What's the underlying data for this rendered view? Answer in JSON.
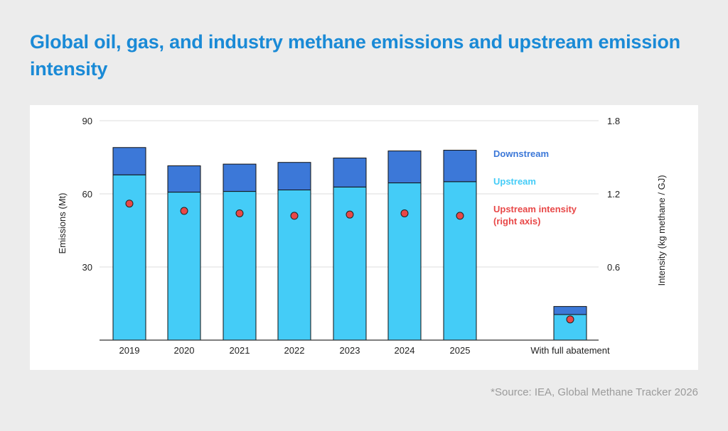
{
  "title": "Global oil, gas, and industry methane emissions and upstream emission intensity",
  "source": "*Source: IEA, Global Methane Tracker 2026",
  "chart_data": {
    "type": "bar",
    "stacked": true,
    "categories": [
      "2019",
      "2020",
      "2021",
      "2022",
      "2023",
      "2024",
      "2025",
      "With full abatement"
    ],
    "series": [
      {
        "name": "Upstream",
        "kind": "bar",
        "axis": "left",
        "color": "#44ccf7",
        "values": [
          67.8,
          60.7,
          61.0,
          61.6,
          62.8,
          64.5,
          65.0,
          10.5
        ]
      },
      {
        "name": "Downstream",
        "kind": "bar",
        "axis": "left",
        "color": "#3c78d8",
        "values": [
          11.2,
          10.8,
          11.2,
          11.3,
          11.9,
          13.1,
          12.9,
          3.3
        ]
      },
      {
        "name": "Upstream intensity",
        "kind": "scatter",
        "axis": "right",
        "color": "#e84848",
        "values": [
          1.12,
          1.06,
          1.04,
          1.02,
          1.03,
          1.04,
          1.02,
          0.17
        ]
      }
    ],
    "legend": [
      {
        "label": "Downstream",
        "color": "#3c78d8"
      },
      {
        "label": "Upstream",
        "color": "#44ccf7"
      },
      {
        "label": "Upstream intensity",
        "label2": "(right axis)",
        "color": "#e84848"
      }
    ],
    "legend_position": "right",
    "ylabel": "Emissions (Mt)",
    "y2label": "Intensity (kg methane / GJ)",
    "ylim": [
      0,
      90
    ],
    "y2lim": [
      0,
      1.8
    ],
    "yticks": [
      30,
      60,
      90
    ],
    "y2ticks": [
      0.6,
      1.2,
      1.8
    ],
    "grid": true
  }
}
